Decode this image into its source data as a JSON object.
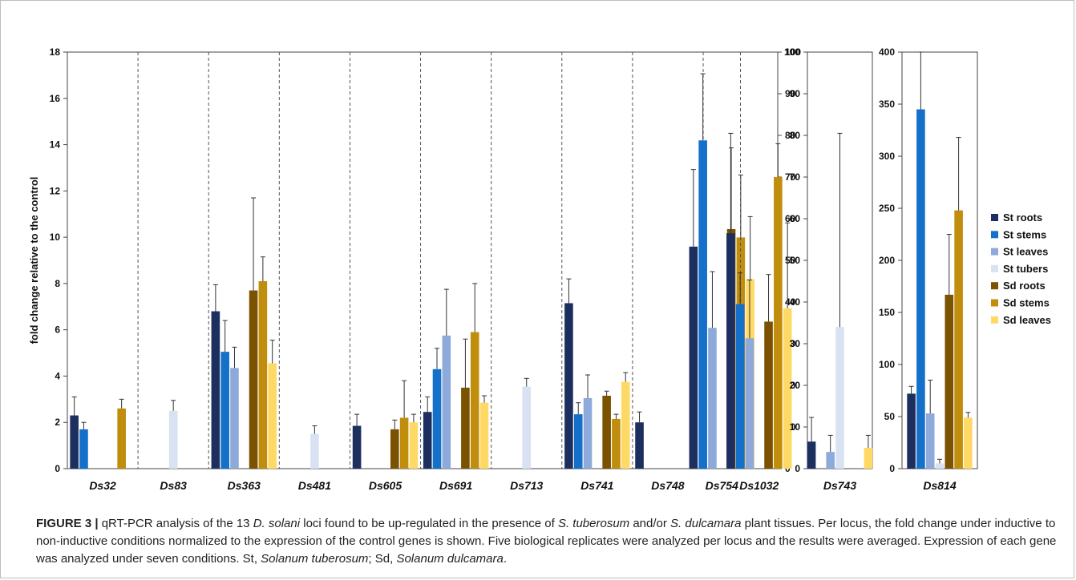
{
  "chart_data": {
    "type": "bar",
    "ylabel": "fold change relative to the control",
    "series": [
      {
        "name": "St roots",
        "color": "#1c2f5e"
      },
      {
        "name": "St stems",
        "color": "#1470c8"
      },
      {
        "name": "St leaves",
        "color": "#8eaadb"
      },
      {
        "name": "St tubers",
        "color": "#d8e2f2"
      },
      {
        "name": "Sd roots",
        "color": "#7a5200"
      },
      {
        "name": "Sd stems",
        "color": "#c08e0c"
      },
      {
        "name": "Sd leaves",
        "color": "#ffd966"
      }
    ],
    "panels": [
      {
        "ylim": [
          0,
          18
        ],
        "yticks": [
          "0",
          "2",
          "4",
          "6",
          "8",
          "10",
          "12",
          "14",
          "16",
          "18"
        ],
        "groups": [
          {
            "label": "Ds32",
            "values": [
              2.3,
              1.7,
              null,
              null,
              null,
              2.6,
              null
            ],
            "errors": [
              0.8,
              0.3,
              null,
              null,
              null,
              0.4,
              null
            ]
          },
          {
            "label": "Ds83",
            "values": [
              null,
              null,
              null,
              2.5,
              null,
              null,
              null
            ],
            "errors": [
              null,
              null,
              null,
              0.45,
              null,
              null,
              null
            ]
          },
          {
            "label": "Ds363",
            "values": [
              6.8,
              5.05,
              4.35,
              null,
              7.7,
              8.1,
              4.55
            ],
            "errors": [
              1.15,
              1.35,
              0.9,
              null,
              4.0,
              1.05,
              1.0
            ]
          },
          {
            "label": "Ds481",
            "values": [
              null,
              null,
              null,
              1.5,
              null,
              null,
              null
            ],
            "errors": [
              null,
              null,
              null,
              0.35,
              null,
              null,
              null
            ]
          },
          {
            "label": "Ds605",
            "values": [
              1.85,
              null,
              null,
              null,
              1.7,
              2.2,
              2.0
            ],
            "errors": [
              0.5,
              null,
              null,
              null,
              0.4,
              1.6,
              0.35
            ]
          },
          {
            "label": "Ds691",
            "values": [
              2.45,
              4.3,
              5.75,
              null,
              3.5,
              5.9,
              2.85
            ],
            "errors": [
              0.65,
              0.9,
              2.0,
              null,
              2.1,
              2.1,
              0.3
            ]
          },
          {
            "label": "Ds713",
            "values": [
              null,
              null,
              null,
              3.55,
              null,
              null,
              null
            ],
            "errors": [
              null,
              null,
              null,
              0.35,
              null,
              null,
              null
            ]
          },
          {
            "label": "Ds741",
            "values": [
              7.15,
              2.35,
              3.05,
              null,
              3.15,
              2.15,
              3.75
            ],
            "errors": [
              1.05,
              0.5,
              1.0,
              null,
              0.2,
              0.2,
              0.4
            ]
          },
          {
            "label": "Ds748",
            "values": [
              2.0,
              null,
              null,
              null,
              null,
              null,
              null
            ],
            "errors": [
              0.45,
              null,
              null,
              null,
              null,
              null,
              null
            ]
          }
        ]
      },
      {
        "ylim": [
          0,
          100
        ],
        "yticks": [
          "0",
          "10",
          "20",
          "30",
          "40",
          "50",
          "60",
          "70",
          "80",
          "90",
          "100"
        ],
        "groups": [
          {
            "label": "Ds754",
            "values": [
              53.3,
              78.8,
              33.8,
              null,
              57.5,
              55.5,
              45.5
            ],
            "errors": [
              18.5,
              16.0,
              13.5,
              null,
              19.5,
              15.0,
              15.0
            ]
          },
          {
            "label": "Ds1032",
            "values": [
              56.5,
              39.5,
              31.3,
              null,
              35.3,
              70.0,
              38.5
            ],
            "errors": [
              24.0,
              7.5,
              14.0,
              null,
              11.3,
              8.0,
              20.5
            ]
          }
        ]
      },
      {
        "ylim": [
          0,
          100
        ],
        "yticks": [
          "0",
          "10",
          "20",
          "30",
          "40",
          "50",
          "60",
          "70",
          "80",
          "90",
          "100"
        ],
        "groups": [
          {
            "label": "Ds743",
            "values": [
              6.5,
              null,
              4.0,
              34.0,
              null,
              null,
              5.0
            ],
            "errors": [
              5.8,
              null,
              4.0,
              46.5,
              null,
              null,
              3.0
            ]
          }
        ]
      },
      {
        "ylim": [
          0,
          400
        ],
        "yticks": [
          "0",
          "50",
          "100",
          "150",
          "200",
          "250",
          "300",
          "350",
          "400"
        ],
        "groups": [
          {
            "label": "Ds814",
            "values": [
              72,
              345,
              53,
              5,
              167,
              248,
              49
            ],
            "errors": [
              7,
              60,
              32,
              4,
              58,
              70,
              5
            ]
          }
        ]
      }
    ]
  },
  "caption": {
    "figure_label": "FIGURE 3 |",
    "parts": [
      {
        "t": " qRT-PCR analysis of the 13 ",
        "i": false
      },
      {
        "t": "D. solani",
        "i": true
      },
      {
        "t": " loci found to be up-regulated in the presence of ",
        "i": false
      },
      {
        "t": "S. tuberosum",
        "i": true
      },
      {
        "t": " and/or ",
        "i": false
      },
      {
        "t": "S. dulcamara",
        "i": true
      },
      {
        "t": " plant tissues. Per locus, the fold change under inductive to non-inductive conditions normalized to the expression of the control genes is shown. Five biological replicates were analyzed per locus and the results were averaged. Expression of each gene was analyzed under seven conditions. St, ",
        "i": false
      },
      {
        "t": "Solanum tuberosum",
        "i": true
      },
      {
        "t": "; Sd, ",
        "i": false
      },
      {
        "t": "Solanum dulcamara",
        "i": true
      },
      {
        "t": ".",
        "i": false
      }
    ]
  }
}
